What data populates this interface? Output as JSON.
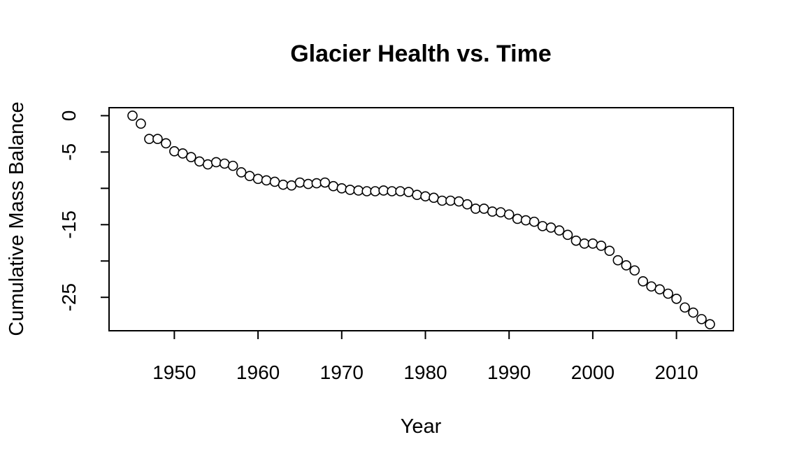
{
  "chart_data": {
    "type": "scatter",
    "title": "Glacier Health vs. Time",
    "xlabel": "Year",
    "ylabel": "Cumulative Mass Balance",
    "xlim": [
      1942.2,
      2016.8
    ],
    "ylim": [
      -29.6,
      1.1
    ],
    "x_ticks": [
      1950,
      1960,
      1970,
      1980,
      1990,
      2000,
      2010
    ],
    "x_tick_labels": [
      "1950",
      "1960",
      "1970",
      "1980",
      "1990",
      "2000",
      "2010"
    ],
    "y_ticks": [
      0,
      -5,
      -10,
      -15,
      -20,
      -25
    ],
    "y_tick_labels": [
      "0",
      "-5",
      "",
      "-15",
      "",
      "-25"
    ],
    "point_style": "open-circle",
    "grid": false,
    "x": [
      1945,
      1946,
      1947,
      1948,
      1949,
      1950,
      1951,
      1952,
      1953,
      1954,
      1955,
      1956,
      1957,
      1958,
      1959,
      1960,
      1961,
      1962,
      1963,
      1964,
      1965,
      1966,
      1967,
      1968,
      1969,
      1970,
      1971,
      1972,
      1973,
      1974,
      1975,
      1976,
      1977,
      1978,
      1979,
      1980,
      1981,
      1982,
      1983,
      1984,
      1985,
      1986,
      1987,
      1988,
      1989,
      1990,
      1991,
      1992,
      1993,
      1994,
      1995,
      1996,
      1997,
      1998,
      1999,
      2000,
      2001,
      2002,
      2003,
      2004,
      2005,
      2006,
      2007,
      2008,
      2009,
      2010,
      2011,
      2012,
      2013,
      2014
    ],
    "y": [
      0.0,
      -1.1,
      -3.2,
      -3.2,
      -3.8,
      -4.9,
      -5.2,
      -5.7,
      -6.3,
      -6.7,
      -6.4,
      -6.6,
      -6.9,
      -7.8,
      -8.3,
      -8.7,
      -8.9,
      -9.1,
      -9.5,
      -9.6,
      -9.2,
      -9.4,
      -9.3,
      -9.2,
      -9.7,
      -10.0,
      -10.2,
      -10.3,
      -10.4,
      -10.4,
      -10.3,
      -10.4,
      -10.4,
      -10.5,
      -10.9,
      -11.1,
      -11.3,
      -11.7,
      -11.7,
      -11.8,
      -12.2,
      -12.8,
      -12.8,
      -13.2,
      -13.3,
      -13.6,
      -14.2,
      -14.4,
      -14.6,
      -15.2,
      -15.4,
      -15.8,
      -16.4,
      -17.2,
      -17.6,
      -17.6,
      -17.9,
      -18.6,
      -19.9,
      -20.6,
      -21.3,
      -22.8,
      -23.5,
      -23.9,
      -24.5,
      -25.2,
      -26.4,
      -27.1,
      -28.0,
      -28.7
    ]
  }
}
